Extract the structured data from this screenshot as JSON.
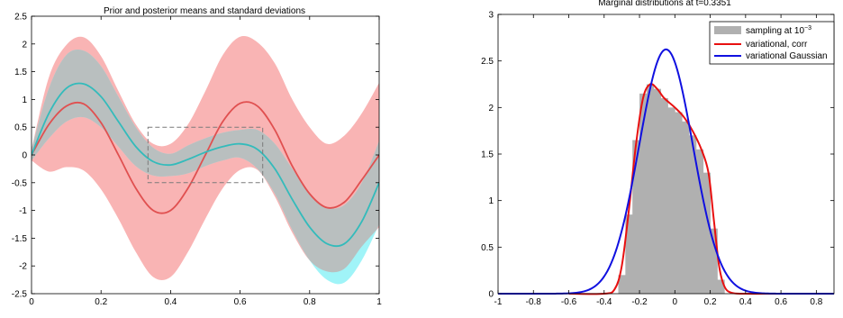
{
  "chart_data": [
    {
      "type": "area",
      "title": "Prior and posterior means and standard deviations",
      "xlabel": "",
      "ylabel": "",
      "xlim": [
        0,
        1
      ],
      "ylim": [
        -2.5,
        2.5
      ],
      "xticks": [
        0,
        0.2,
        0.4,
        0.6,
        0.8,
        1
      ],
      "xtick_labels": [
        "0",
        "0.2",
        "0.4",
        "0.6",
        "0.8",
        "1"
      ],
      "yticks": [
        -2.5,
        -2,
        -1.5,
        -1,
        -0.5,
        0,
        0.5,
        1,
        1.5,
        2,
        2.5
      ],
      "ytick_labels": [
        "-2.5",
        "-2",
        "-1.5",
        "-1",
        "-0.5",
        "0",
        "0.5",
        "1",
        "1.5",
        "2",
        "2.5"
      ],
      "grid": false,
      "x": [
        0,
        0.05,
        0.1,
        0.15,
        0.2,
        0.25,
        0.3,
        0.35,
        0.4,
        0.45,
        0.5,
        0.55,
        0.6,
        0.65,
        0.7,
        0.75,
        0.8,
        0.85,
        0.9,
        0.95,
        1
      ],
      "series": [
        {
          "color": "#e05050",
          "band_color": "#f9b4b4",
          "mean": [
            0,
            0.55,
            0.88,
            0.92,
            0.58,
            0.0,
            -0.6,
            -1.0,
            -1.0,
            -0.6,
            0.0,
            0.6,
            0.93,
            0.88,
            0.45,
            -0.2,
            -0.7,
            -0.95,
            -0.85,
            -0.45,
            0.0
          ],
          "band_half_width": [
            0.1,
            0.85,
            1.1,
            1.2,
            1.2,
            1.15,
            1.15,
            1.2,
            1.2,
            1.15,
            1.15,
            1.2,
            1.2,
            1.15,
            1.2,
            1.2,
            1.2,
            1.15,
            1.2,
            1.2,
            1.3
          ]
        },
        {
          "color": "#33bbbb",
          "band_color": "#a0f4f8",
          "mean": [
            0,
            0.75,
            1.2,
            1.28,
            1.05,
            0.6,
            0.15,
            -0.12,
            -0.18,
            -0.08,
            0.05,
            0.15,
            0.2,
            0.1,
            -0.25,
            -0.8,
            -1.3,
            -1.6,
            -1.6,
            -1.2,
            -0.5
          ],
          "band_half_width": [
            0.1,
            0.45,
            0.6,
            0.6,
            0.55,
            0.45,
            0.35,
            0.25,
            0.2,
            0.25,
            0.25,
            0.25,
            0.25,
            0.35,
            0.45,
            0.55,
            0.6,
            0.65,
            0.7,
            0.7,
            0.75
          ]
        }
      ],
      "annotation_box": {
        "x": [
          0.335,
          0.665
        ],
        "y": [
          -0.5,
          0.5
        ],
        "style": "dashed",
        "color": "#7a7a7a"
      },
      "overlap_color": "#b9bfbf"
    },
    {
      "type": "area",
      "title": "Marginal distributions at t=0.3351",
      "xlabel": "",
      "ylabel": "",
      "xlim": [
        -1,
        0.9
      ],
      "ylim": [
        0,
        3
      ],
      "xticks": [
        -1,
        -0.8,
        -0.6,
        -0.4,
        -0.2,
        0,
        0.2,
        0.4,
        0.6,
        0.8
      ],
      "xtick_labels": [
        "-1",
        "-0.8",
        "-0.6",
        "-0.4",
        "-0.2",
        "0",
        "0.2",
        "0.4",
        "0.6",
        "0.8"
      ],
      "yticks": [
        0,
        0.5,
        1,
        1.5,
        2,
        2.5,
        3
      ],
      "ytick_labels": [
        "0",
        "0.5",
        "1",
        "1.5",
        "2",
        "2.5",
        "3"
      ],
      "grid": false,
      "legend_placement": "top-right",
      "legend": [
        {
          "label": "sampling at 10",
          "sup": "−3",
          "color": "#b0b0b0",
          "kind": "patch"
        },
        {
          "label": "variational, corr",
          "color": "#e81010",
          "kind": "line"
        },
        {
          "label": "variational Gaussian",
          "color": "#1010e0",
          "kind": "line"
        }
      ],
      "histogram": {
        "color": "#b0b0b0",
        "bin_edges": [
          -0.32,
          -0.28,
          -0.24,
          -0.2,
          -0.16,
          -0.12,
          -0.08,
          -0.04,
          0.0,
          0.04,
          0.08,
          0.12,
          0.16,
          0.2,
          0.24,
          0.28
        ],
        "values": [
          0.2,
          0.85,
          1.65,
          2.15,
          2.25,
          2.2,
          2.1,
          2.0,
          1.95,
          1.85,
          1.7,
          1.55,
          1.3,
          0.7,
          0.15
        ]
      },
      "curves": [
        {
          "name": "variational, corr",
          "color": "#e81010",
          "x": [
            -0.6,
            -0.4,
            -0.34,
            -0.3,
            -0.26,
            -0.22,
            -0.18,
            -0.14,
            -0.1,
            -0.06,
            0.0,
            0.05,
            0.1,
            0.15,
            0.19,
            0.22,
            0.25,
            0.28,
            0.32,
            0.4,
            0.6,
            0.9
          ],
          "y": [
            0,
            0,
            0.05,
            0.3,
            0.9,
            1.6,
            2.1,
            2.25,
            2.2,
            2.1,
            2.0,
            1.9,
            1.75,
            1.55,
            1.3,
            0.8,
            0.3,
            0.08,
            0.01,
            0,
            0,
            0
          ]
        },
        {
          "name": "variational Gaussian",
          "color": "#1010e0",
          "mean": -0.05,
          "sigma": 0.152,
          "x_range": [
            -1,
            0.9
          ]
        }
      ]
    }
  ]
}
